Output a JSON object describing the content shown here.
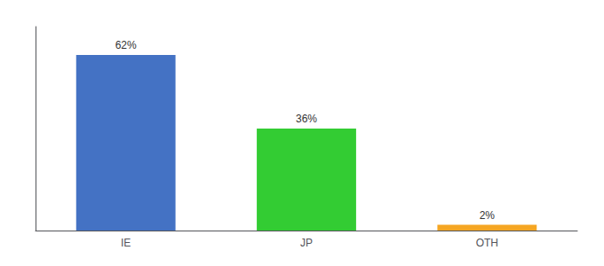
{
  "chart_data": {
    "type": "bar",
    "categories": [
      "IE",
      "JP",
      "OTH"
    ],
    "values": [
      62,
      36,
      2
    ],
    "value_labels": [
      "62%",
      "36%",
      "2%"
    ],
    "colors": [
      "#4472c4",
      "#33cc33",
      "#f5a623"
    ],
    "ylim": [
      0,
      72
    ],
    "data_labels": true,
    "tick_labels": "x",
    "grid": false
  }
}
